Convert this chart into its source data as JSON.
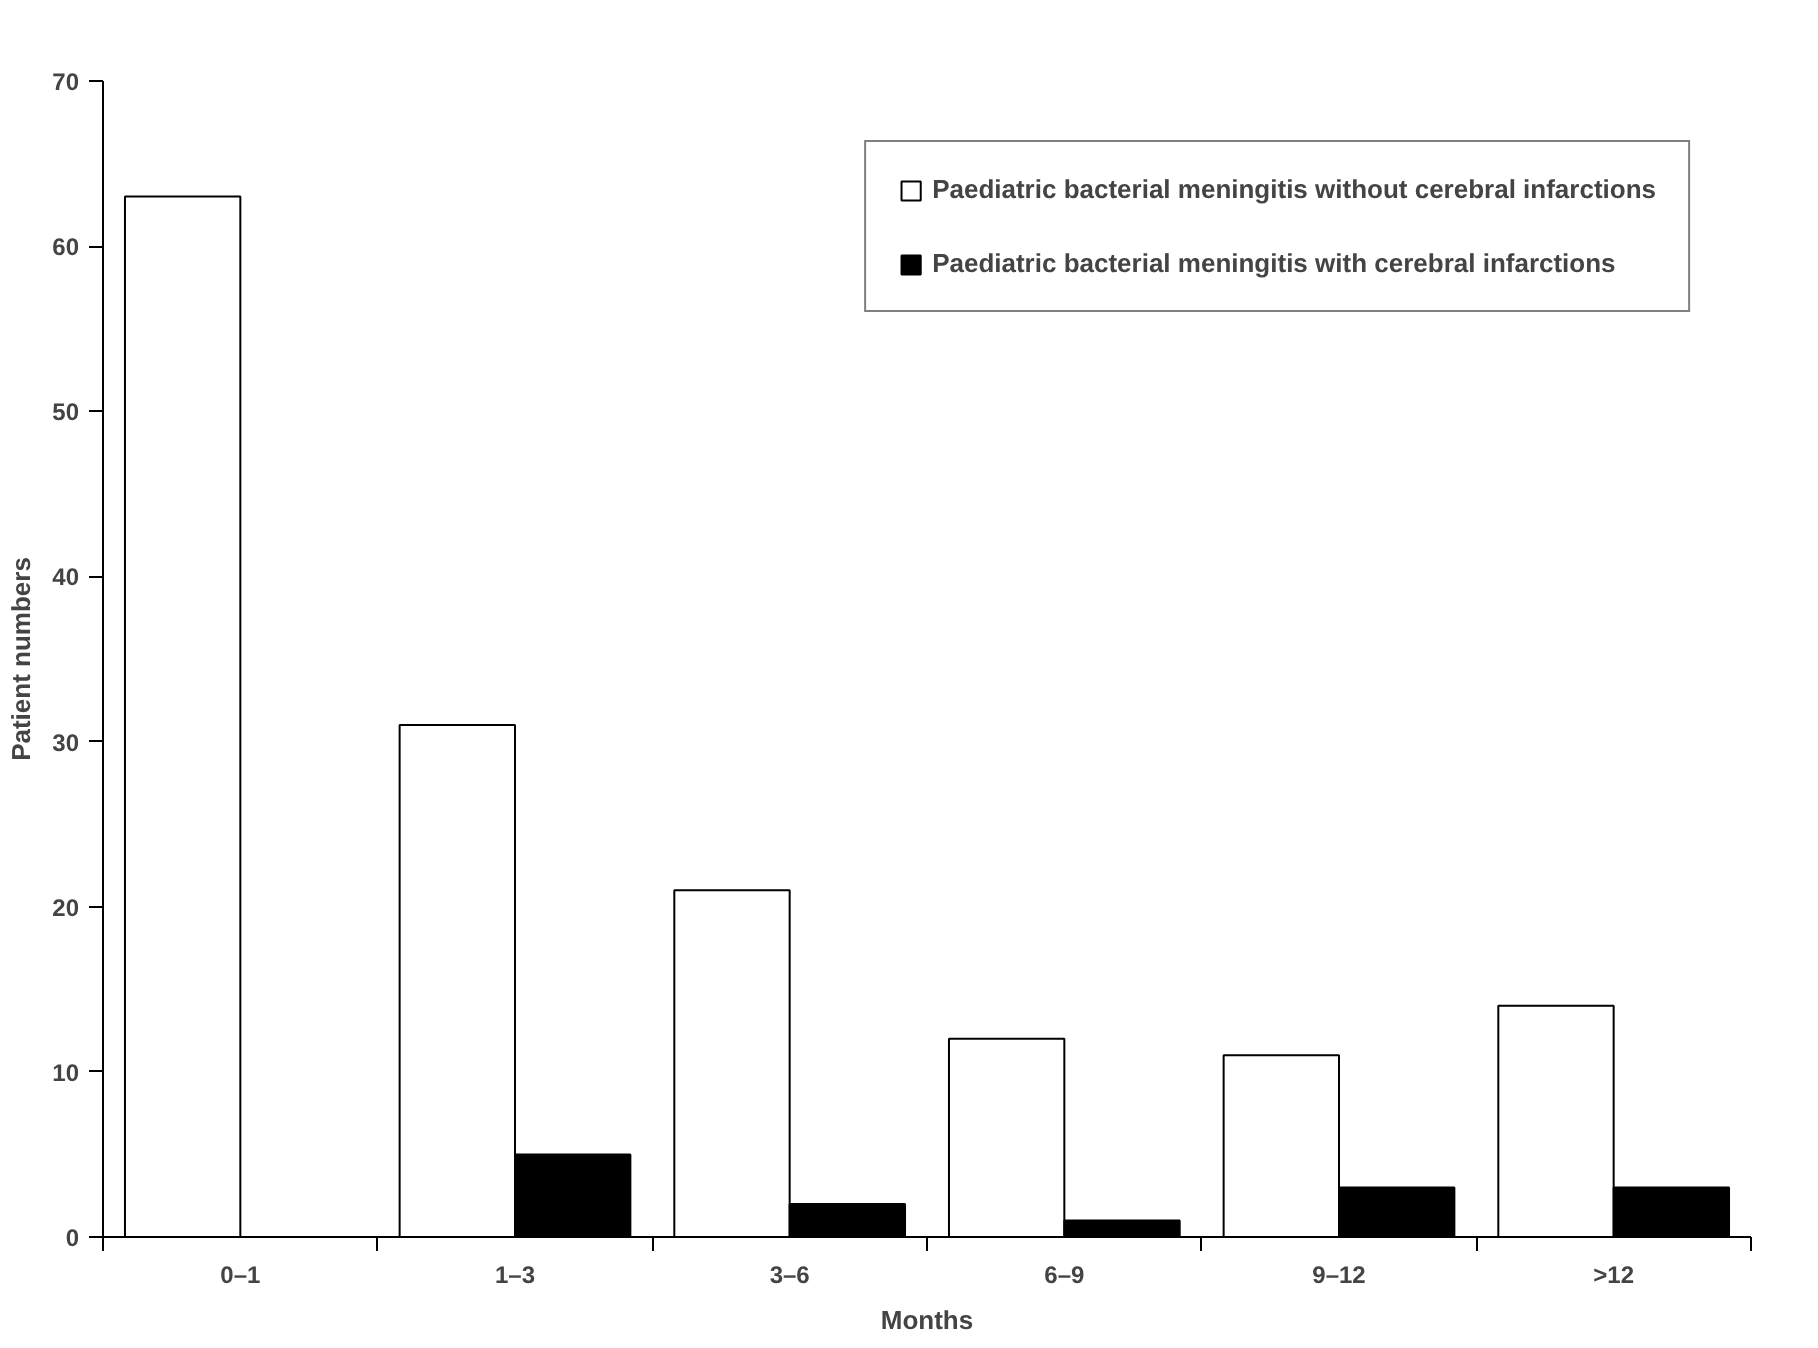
{
  "chart_data": {
    "type": "bar",
    "xlabel": "Months",
    "ylabel": "Patient numbers",
    "categories": [
      "0–1",
      "1–3",
      "3–6",
      "6–9",
      "9–12",
      ">12"
    ],
    "series": [
      {
        "name": "Paediatric bacterial meningitis without cerebral infarctions",
        "color": "#ffffff",
        "values": [
          63,
          31,
          21,
          12,
          11,
          14
        ]
      },
      {
        "name": "Paediatric bacterial meningitis with cerebral infarctions",
        "color": "#000000",
        "values": [
          0,
          5,
          2,
          1,
          3,
          3
        ]
      }
    ],
    "ylim": [
      0,
      70
    ],
    "yticks": [
      0,
      10,
      20,
      30,
      40,
      50,
      60,
      70
    ],
    "grid": false,
    "legend": "top right"
  }
}
